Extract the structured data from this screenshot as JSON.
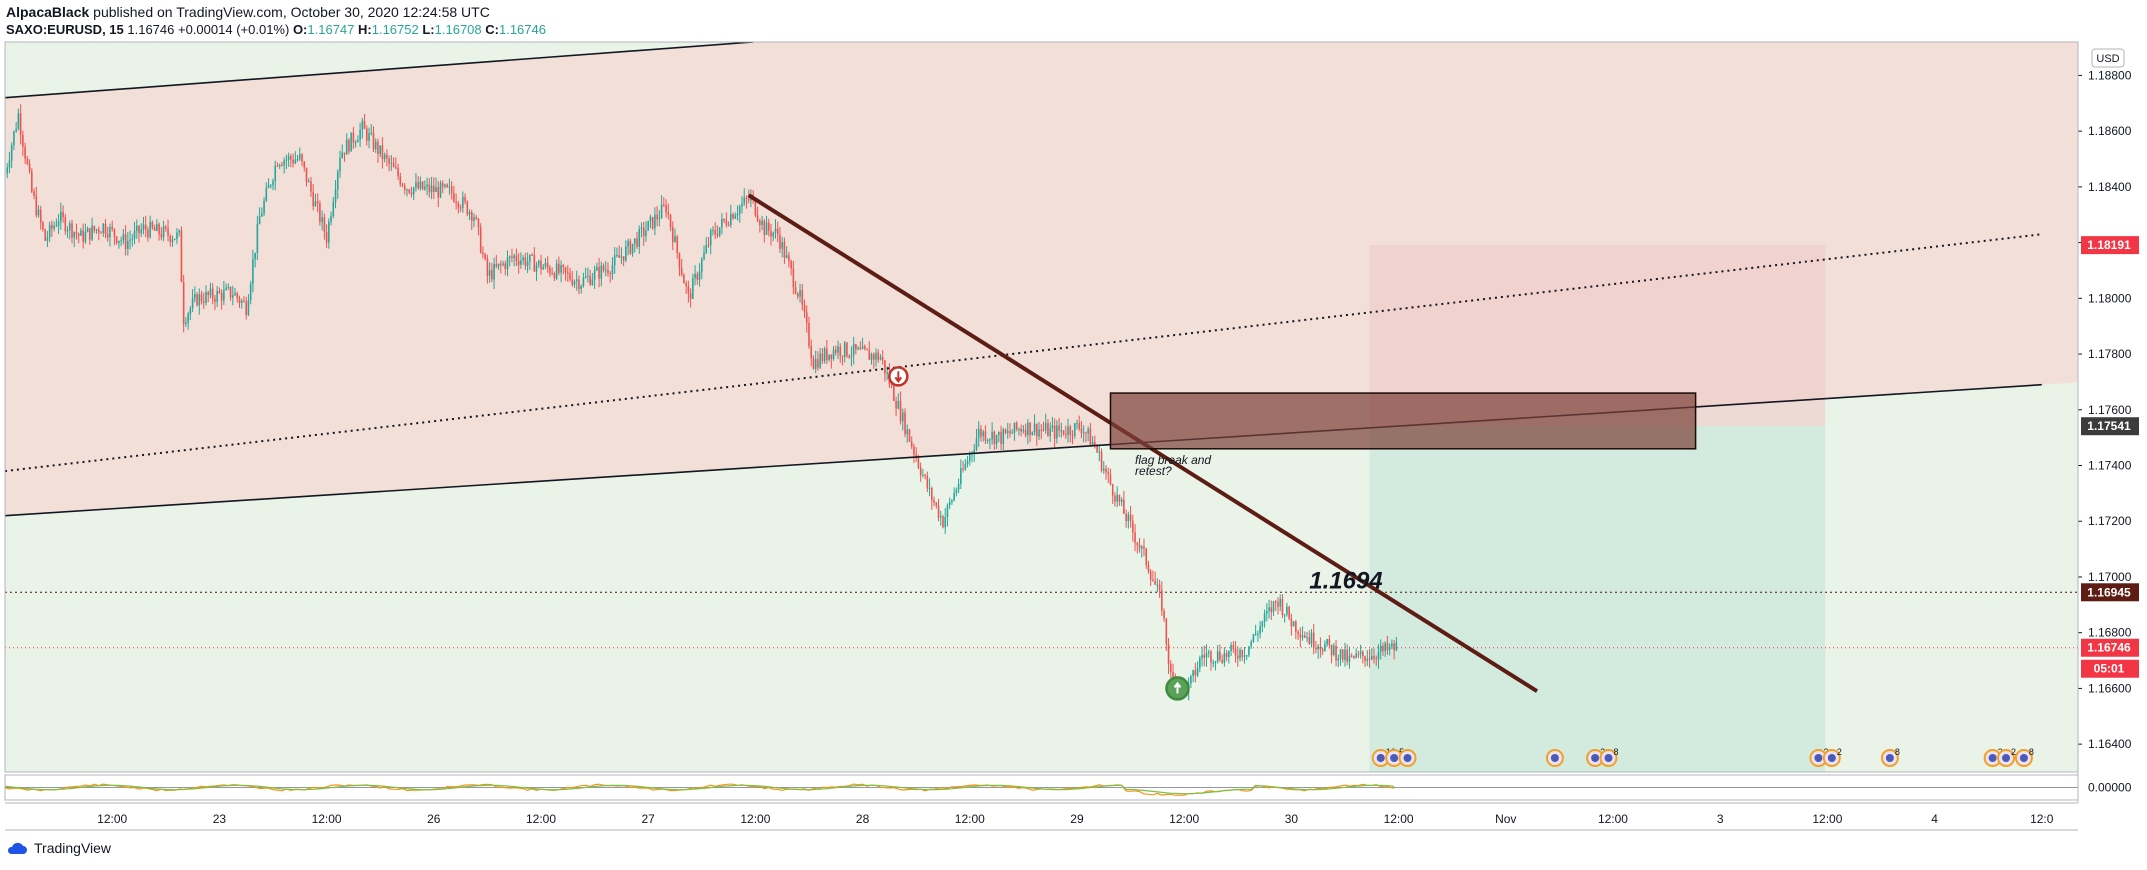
{
  "header": {
    "author": "AlpacaBlack",
    "published": "published on TradingView.com, October 30, 2020 12:24:58 UTC",
    "symbol": "SAXO:EURUSD, 15",
    "last": "1.16746",
    "change": "+0.00014 (+0.01%)",
    "o_label": "O:",
    "o": "1.16747",
    "h_label": "H:",
    "h": "1.16752",
    "l_label": "L:",
    "l": "1.16708",
    "c_label": "C:",
    "c": "1.16746"
  },
  "footer": {
    "brand": "TradingView"
  },
  "chart_data": {
    "type": "candlestick",
    "currency": "USD",
    "ylim": [
      1.163,
      1.1892
    ],
    "y_ticks": [
      "1.18800",
      "1.18600",
      "1.18400",
      "1.18200",
      "1.18000",
      "1.17800",
      "1.17600",
      "1.17400",
      "1.17200",
      "1.17000",
      "1.16800",
      "1.16600",
      "1.16400"
    ],
    "y_tick_values": [
      1.188,
      1.186,
      1.184,
      1.182,
      1.18,
      1.178,
      1.176,
      1.174,
      1.172,
      1.17,
      1.168,
      1.166,
      1.164
    ],
    "x_ticks": [
      "12:00",
      "23",
      "12:00",
      "26",
      "12:00",
      "27",
      "12:00",
      "28",
      "12:00",
      "29",
      "12:00",
      "30",
      "12:00",
      "Nov",
      "12:00",
      "3",
      "12:00",
      "4",
      "12:0"
    ],
    "x_tick_index": [
      48,
      96,
      144,
      192,
      240,
      288,
      336,
      384,
      432,
      480,
      528,
      576,
      624,
      672,
      720,
      768,
      816,
      864,
      912
    ],
    "price_badges": [
      {
        "label": "1.18191",
        "value": 1.18191,
        "color": "#f23645"
      },
      {
        "label": "1.17541",
        "value": 1.17541,
        "color": "#3c3c3c"
      },
      {
        "label": "1.16945",
        "value": 1.16945,
        "color": "#5d1c14"
      },
      {
        "label": "1.16746",
        "value": 1.16746,
        "color": "#f23645"
      }
    ],
    "countdown": "05:01",
    "oscillator_tick": "0.00000",
    "horizontal_level": {
      "value": 1.16945,
      "label": "1.1694"
    },
    "annotation": {
      "line1": "flag break and",
      "line2": "retest?"
    },
    "price_path": [
      {
        "i": 0,
        "p": 1.1845
      },
      {
        "i": 6,
        "p": 1.1866
      },
      {
        "i": 12,
        "p": 1.1838
      },
      {
        "i": 18,
        "p": 1.1821
      },
      {
        "i": 24,
        "p": 1.1829
      },
      {
        "i": 34,
        "p": 1.1822
      },
      {
        "i": 44,
        "p": 1.1826
      },
      {
        "i": 54,
        "p": 1.182
      },
      {
        "i": 62,
        "p": 1.1825
      },
      {
        "i": 78,
        "p": 1.1822
      },
      {
        "i": 80,
        "p": 1.1793
      },
      {
        "i": 86,
        "p": 1.18
      },
      {
        "i": 102,
        "p": 1.1802
      },
      {
        "i": 108,
        "p": 1.1797
      },
      {
        "i": 114,
        "p": 1.1829
      },
      {
        "i": 122,
        "p": 1.185
      },
      {
        "i": 132,
        "p": 1.185
      },
      {
        "i": 144,
        "p": 1.1822
      },
      {
        "i": 150,
        "p": 1.1852
      },
      {
        "i": 160,
        "p": 1.1861
      },
      {
        "i": 170,
        "p": 1.185
      },
      {
        "i": 180,
        "p": 1.184
      },
      {
        "i": 200,
        "p": 1.1838
      },
      {
        "i": 210,
        "p": 1.183
      },
      {
        "i": 216,
        "p": 1.1808
      },
      {
        "i": 228,
        "p": 1.1815
      },
      {
        "i": 246,
        "p": 1.181
      },
      {
        "i": 258,
        "p": 1.1806
      },
      {
        "i": 272,
        "p": 1.1812
      },
      {
        "i": 284,
        "p": 1.1822
      },
      {
        "i": 296,
        "p": 1.1833
      },
      {
        "i": 306,
        "p": 1.18
      },
      {
        "i": 316,
        "p": 1.1822
      },
      {
        "i": 326,
        "p": 1.1831
      },
      {
        "i": 334,
        "p": 1.1836
      },
      {
        "i": 340,
        "p": 1.1825
      },
      {
        "i": 346,
        "p": 1.1823
      },
      {
        "i": 356,
        "p": 1.18
      },
      {
        "i": 362,
        "p": 1.1777
      },
      {
        "i": 372,
        "p": 1.1782
      },
      {
        "i": 384,
        "p": 1.178
      },
      {
        "i": 392,
        "p": 1.1779
      },
      {
        "i": 396,
        "p": 1.177
      },
      {
        "i": 404,
        "p": 1.1752
      },
      {
        "i": 414,
        "p": 1.173
      },
      {
        "i": 420,
        "p": 1.172
      },
      {
        "i": 430,
        "p": 1.174
      },
      {
        "i": 436,
        "p": 1.1752
      },
      {
        "i": 446,
        "p": 1.175
      },
      {
        "i": 456,
        "p": 1.1754
      },
      {
        "i": 470,
        "p": 1.1752
      },
      {
        "i": 482,
        "p": 1.1754
      },
      {
        "i": 488,
        "p": 1.1747
      },
      {
        "i": 494,
        "p": 1.1735
      },
      {
        "i": 504,
        "p": 1.1718
      },
      {
        "i": 512,
        "p": 1.1704
      },
      {
        "i": 518,
        "p": 1.169
      },
      {
        "i": 522,
        "p": 1.1664
      },
      {
        "i": 530,
        "p": 1.166
      },
      {
        "i": 536,
        "p": 1.1672
      },
      {
        "i": 546,
        "p": 1.1672
      },
      {
        "i": 556,
        "p": 1.1674
      },
      {
        "i": 564,
        "p": 1.1685
      },
      {
        "i": 570,
        "p": 1.1692
      },
      {
        "i": 576,
        "p": 1.1684
      },
      {
        "i": 584,
        "p": 1.1678
      },
      {
        "i": 594,
        "p": 1.1674
      },
      {
        "i": 602,
        "p": 1.167
      },
      {
        "i": 610,
        "p": 1.1672
      },
      {
        "i": 616,
        "p": 1.1673
      },
      {
        "i": 623,
        "p": 1.16746
      }
    ],
    "lines": [
      {
        "name": "upper channel",
        "style": "solid",
        "p1": {
          "i": 0,
          "p": 1.1872
        },
        "p2": {
          "i": 335,
          "p": 1.1892
        }
      },
      {
        "name": "middle channel",
        "style": "dotted",
        "p1": {
          "i": 0,
          "p": 1.1738
        },
        "p2": {
          "i": 912,
          "p": 1.1823
        }
      },
      {
        "name": "lower channel",
        "style": "solid",
        "p1": {
          "i": 0,
          "p": 1.1722
        },
        "p2": {
          "i": 912,
          "p": 1.1769
        }
      },
      {
        "name": "downtrend",
        "style": "solid-thick",
        "p1": {
          "i": 333,
          "p": 1.1837
        },
        "p2": {
          "i": 686,
          "p": 1.1659
        }
      }
    ],
    "zones": [
      {
        "name": "supply",
        "from_i": 495,
        "to_i": 757,
        "top": 1.1766,
        "bottom": 1.1746
      },
      {
        "name": "stop",
        "from_i": 611,
        "to_i": 815,
        "top": 1.18191,
        "bottom": 1.17541
      },
      {
        "name": "target",
        "from_i": 611,
        "to_i": 815,
        "top": 1.17541,
        "bottom": 1.163
      }
    ],
    "markers": [
      {
        "name": "sell-signal",
        "i": 400,
        "p": 1.1772
      },
      {
        "name": "buy-signal",
        "i": 525,
        "p": 1.166
      }
    ],
    "event_icons": [
      {
        "i": 616,
        "label": "10"
      },
      {
        "i": 622,
        "label": "5"
      },
      {
        "i": 628,
        "label": ""
      },
      {
        "i": 694,
        "label": ""
      },
      {
        "i": 712,
        "label": "2"
      },
      {
        "i": 718,
        "label": "8"
      },
      {
        "i": 812,
        "label": "2"
      },
      {
        "i": 818,
        "label": "2"
      },
      {
        "i": 844,
        "label": "8"
      },
      {
        "i": 890,
        "label": "2"
      },
      {
        "i": 896,
        "label": "2"
      },
      {
        "i": 904,
        "label": "8"
      }
    ]
  }
}
